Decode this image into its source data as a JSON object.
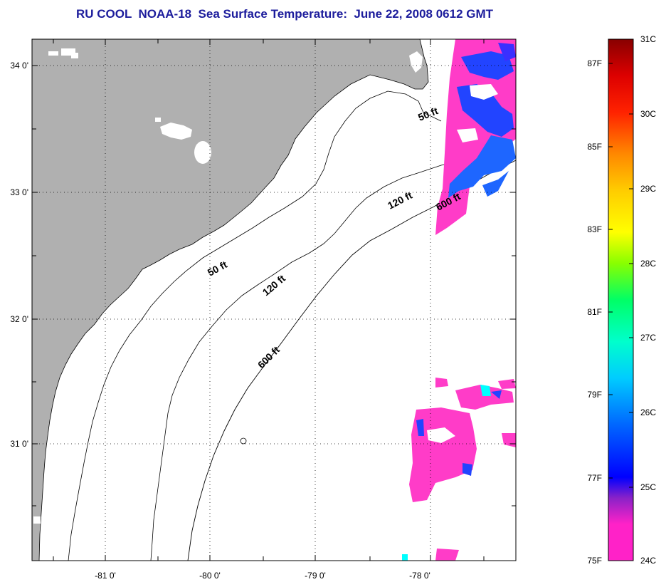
{
  "title": "RU COOL  NOAA-18  Sea Surface Temperature:  June 22, 2008 0612 GMT",
  "map": {
    "longitude_ticks": [
      "-81 0'",
      "-80 0'",
      "-79 0'",
      "-78 0'"
    ],
    "latitude_ticks": [
      "34 0'",
      "33 0'",
      "32 0'",
      "31 0'"
    ],
    "contour_labels": [
      "50 ft",
      "50 ft",
      "120 ft",
      "120 ft",
      "600 ft",
      "600 ft"
    ]
  },
  "colorbar": {
    "celsius_ticks": [
      "31C",
      "30C",
      "29C",
      "28C",
      "27C",
      "26C",
      "25C",
      "24C"
    ],
    "fahrenheit_ticks": [
      "87F",
      "85F",
      "83F",
      "81F",
      "79F",
      "77F",
      "75F"
    ]
  },
  "colors": {
    "land": "#b0b0b0",
    "title": "#1c1c9c",
    "sst_24C": "#ff3cc8",
    "sst_25C": "#0000ff",
    "sst_26C": "#0088ff",
    "sst_27C": "#00ffff"
  }
}
